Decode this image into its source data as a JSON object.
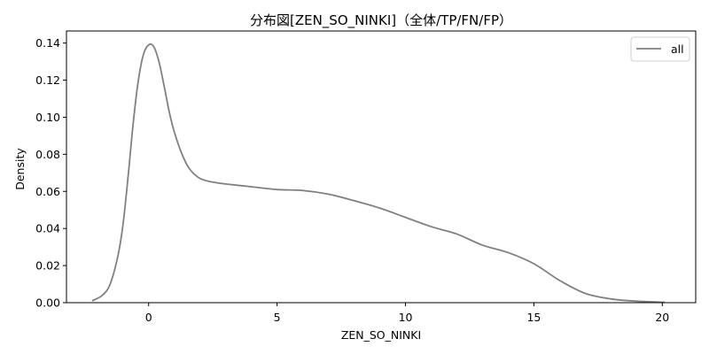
{
  "chart_data": {
    "type": "line",
    "title": "分布図[ZEN_SO_NINKI]（全体/TP/FN/FP）",
    "xlabel": "ZEN_SO_NINKI",
    "ylabel": "Density",
    "xlim": [
      -3.2,
      21.3
    ],
    "ylim": [
      0,
      0.1465
    ],
    "x_ticks": [
      0,
      5,
      10,
      15,
      20
    ],
    "y_ticks": [
      0.0,
      0.02,
      0.04,
      0.06,
      0.08,
      0.1,
      0.12,
      0.14
    ],
    "x_tick_labels": [
      "0",
      "5",
      "10",
      "15",
      "20"
    ],
    "y_tick_labels": [
      "0.00",
      "0.02",
      "0.04",
      "0.06",
      "0.08",
      "0.10",
      "0.12",
      "0.14"
    ],
    "grid": false,
    "legend": {
      "position": "top-right",
      "entries": [
        "all"
      ]
    },
    "series": [
      {
        "name": "all",
        "color": "#808080",
        "x": [
          -2.2,
          -1.8,
          -1.5,
          -1.2,
          -1.0,
          -0.8,
          -0.6,
          -0.4,
          -0.2,
          0.0,
          0.2,
          0.4,
          0.6,
          0.8,
          1.0,
          1.3,
          1.6,
          2.0,
          2.5,
          3.0,
          4.0,
          5.0,
          6.0,
          7.0,
          8.0,
          9.0,
          10.0,
          11.0,
          12.0,
          13.0,
          14.0,
          15.0,
          16.0,
          17.0,
          18.0,
          19.0,
          20.1
        ],
        "y": [
          0.001,
          0.004,
          0.01,
          0.025,
          0.042,
          0.068,
          0.097,
          0.12,
          0.134,
          0.139,
          0.138,
          0.13,
          0.117,
          0.103,
          0.092,
          0.08,
          0.072,
          0.067,
          0.065,
          0.064,
          0.0625,
          0.061,
          0.0605,
          0.0585,
          0.055,
          0.051,
          0.046,
          0.041,
          0.037,
          0.031,
          0.027,
          0.021,
          0.012,
          0.005,
          0.002,
          0.0008,
          0.0002
        ]
      }
    ]
  }
}
